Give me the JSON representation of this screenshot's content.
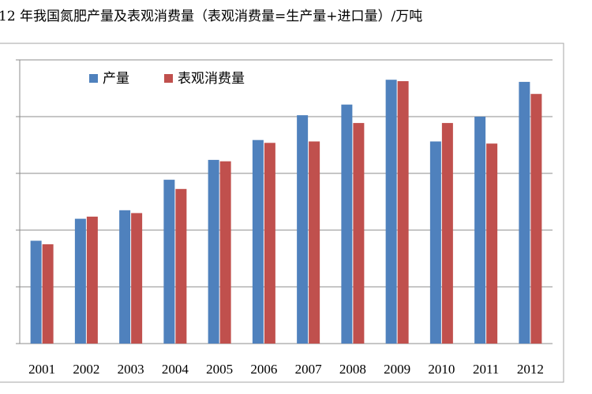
{
  "chart_data": {
    "type": "bar",
    "title": "12 年我国氮肥产量及表观消费量（表观消费量=生产量+进口量）/万吨",
    "xlabel": "",
    "ylabel": "",
    "categories": [
      "2001",
      "2002",
      "2003",
      "2004",
      "2005",
      "2006",
      "2007",
      "2008",
      "2009",
      "2010",
      "2011",
      "2012"
    ],
    "series": [
      {
        "name": "产量",
        "color": "#4f81bd",
        "values": [
          2450,
          2760,
          2880,
          3310,
          3590,
          3870,
          4220,
          4370,
          4720,
          3850,
          4200,
          4690
        ]
      },
      {
        "name": "表观消费量",
        "color": "#c0504d",
        "values": [
          2400,
          2790,
          2840,
          3180,
          3570,
          3830,
          3850,
          4110,
          4700,
          4110,
          3820,
          4520
        ]
      }
    ],
    "ylim": [
      1000,
      5000
    ],
    "yticks": [
      1000,
      1800,
      2600,
      3400,
      4200,
      5000
    ],
    "ytick_labels_visible": false,
    "grid": true,
    "legend_position": "top-left"
  }
}
